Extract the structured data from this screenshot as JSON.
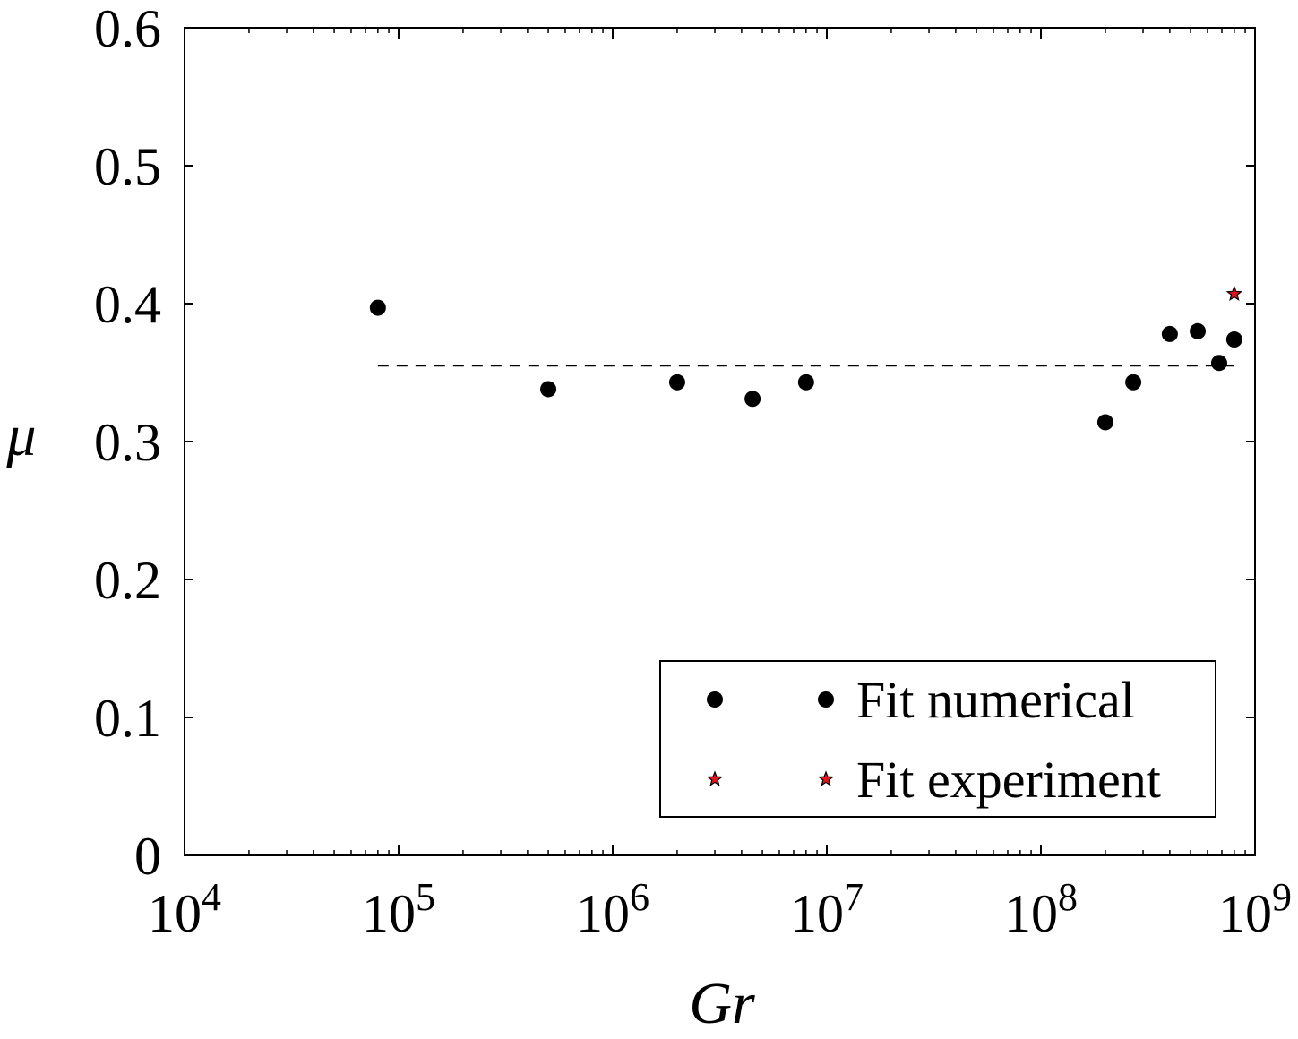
{
  "chart_data": {
    "type": "scatter",
    "title": "",
    "xlabel": "Gr",
    "ylabel": "μ",
    "x_scale": "log",
    "xlim": [
      10000,
      1000000000
    ],
    "ylim": [
      0,
      0.6
    ],
    "x_ticks": [
      {
        "value": 10000,
        "base": "10",
        "exp": "4"
      },
      {
        "value": 100000,
        "base": "10",
        "exp": "5"
      },
      {
        "value": 1000000,
        "base": "10",
        "exp": "6"
      },
      {
        "value": 10000000,
        "base": "10",
        "exp": "7"
      },
      {
        "value": 100000000,
        "base": "10",
        "exp": "8"
      },
      {
        "value": 1000000000,
        "base": "10",
        "exp": "9"
      }
    ],
    "y_ticks": [
      {
        "value": 0,
        "label": "0"
      },
      {
        "value": 0.1,
        "label": "0.1"
      },
      {
        "value": 0.2,
        "label": "0.2"
      },
      {
        "value": 0.3,
        "label": "0.3"
      },
      {
        "value": 0.4,
        "label": "0.4"
      },
      {
        "value": 0.5,
        "label": "0.5"
      },
      {
        "value": 0.6,
        "label": "0.6"
      }
    ],
    "grid": false,
    "legend_position": "bottom-right",
    "series": [
      {
        "name": "Fit numerical",
        "marker": "circle",
        "color": "#000000",
        "points": [
          {
            "x": 80000,
            "y": 0.397
          },
          {
            "x": 500000,
            "y": 0.338
          },
          {
            "x": 2000000,
            "y": 0.343
          },
          {
            "x": 4500000,
            "y": 0.331
          },
          {
            "x": 8000000,
            "y": 0.343
          },
          {
            "x": 200000000,
            "y": 0.314
          },
          {
            "x": 270000000,
            "y": 0.343
          },
          {
            "x": 400000000,
            "y": 0.378
          },
          {
            "x": 540000000,
            "y": 0.38
          },
          {
            "x": 680000000,
            "y": 0.357
          },
          {
            "x": 800000000,
            "y": 0.374
          }
        ]
      },
      {
        "name": "Fit experiment",
        "marker": "star",
        "color": "#e0141e",
        "points": [
          {
            "x": 800000000,
            "y": 0.407
          }
        ]
      }
    ],
    "reference_lines": [
      {
        "style": "dashed",
        "color": "#000000",
        "x_range": [
          80000,
          800000000
        ],
        "y": 0.355
      }
    ]
  }
}
